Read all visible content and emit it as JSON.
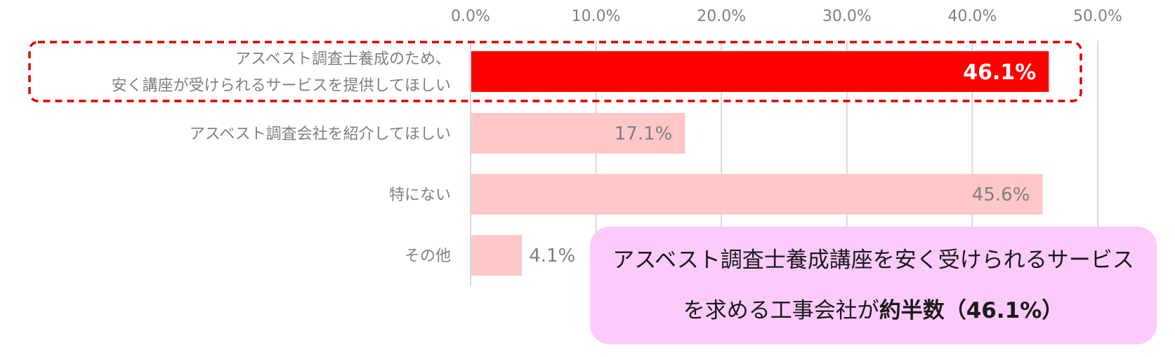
{
  "chart_data": {
    "type": "bar",
    "orientation": "horizontal",
    "x_ticks": [
      "0.0%",
      "10.0%",
      "20.0%",
      "30.0%",
      "40.0%",
      "50.0%"
    ],
    "xlim": [
      0,
      50
    ],
    "grid": true,
    "categories": [
      [
        "アスベスト調査士養成のため、",
        "安く講座が受けられるサービスを提供してほしい"
      ],
      [
        "アスベスト調査会社を紹介してほしい"
      ],
      [
        "特にない"
      ],
      [
        "その他"
      ]
    ],
    "values": [
      46.1,
      17.1,
      45.6,
      4.1
    ],
    "value_labels": [
      "46.1%",
      "17.1%",
      "45.6%",
      "4.1%"
    ],
    "highlight_index": 0,
    "colors": {
      "highlight": "#ff0000",
      "normal": "#ffc7c8",
      "grid": "#d9d9d9",
      "outline": "#e00000"
    }
  },
  "callout": {
    "line1": "アスベスト調査士養成講座を安く受けられるサービス",
    "line2_prefix": "を求める工事会社が",
    "line2_bold": "約半数（46.1%）"
  }
}
